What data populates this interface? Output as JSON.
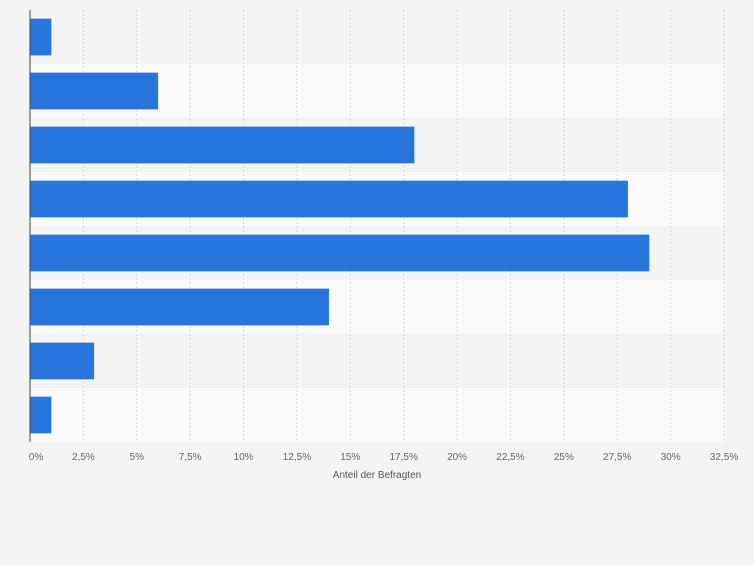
{
  "chart_data": {
    "type": "bar",
    "orientation": "horizontal",
    "categories": [
      "",
      "",
      "",
      "",
      "",
      "",
      "",
      ""
    ],
    "values": [
      1,
      6,
      18,
      28,
      29,
      14,
      3,
      1
    ],
    "title": "",
    "xlabel": "Anteil der Befragten",
    "ylabel": "",
    "xlim": [
      0,
      32.5
    ],
    "ticks": [
      0,
      2.5,
      5,
      7.5,
      10,
      12.5,
      15,
      17.5,
      20,
      22.5,
      25,
      27.5,
      30,
      32.5
    ],
    "tick_labels": [
      "0%",
      "2,5%",
      "5%",
      "7,5%",
      "10%",
      "12,5%",
      "15%",
      "17,5%",
      "20%",
      "22,5%",
      "25%",
      "27,5%",
      "30%",
      "32,5%"
    ],
    "grid": true,
    "bar_color": "#2876dd",
    "band_colors": [
      "#f4f4f4",
      "#fafafa"
    ]
  }
}
